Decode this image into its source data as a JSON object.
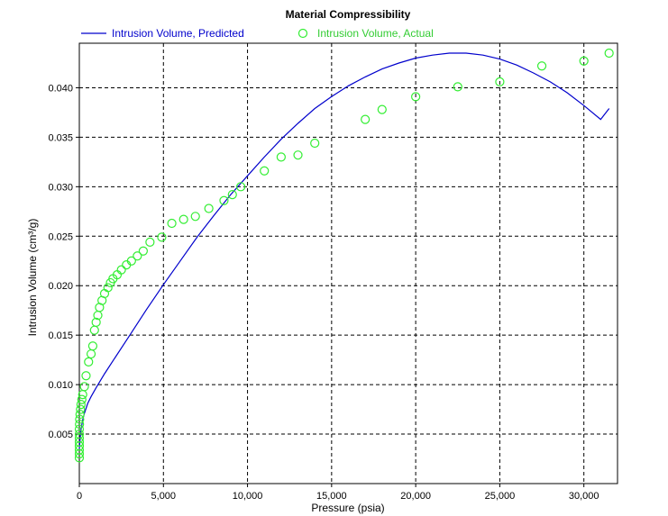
{
  "chart_data": {
    "type": "scatter",
    "title": "Material Compressibility",
    "xlabel": "Pressure (psia)",
    "ylabel": "Intrusion Volume (cm³/g)",
    "xlim": [
      0,
      32000
    ],
    "ylim": [
      0,
      0.0445
    ],
    "x_ticks": [
      0,
      5000,
      10000,
      15000,
      20000,
      25000,
      30000
    ],
    "x_tick_labels": [
      "0",
      "5,000",
      "10,000",
      "15,000",
      "20,000",
      "25,000",
      "30,000"
    ],
    "y_ticks": [
      0.005,
      0.01,
      0.015,
      0.02,
      0.025,
      0.03,
      0.035,
      0.04
    ],
    "y_tick_labels": [
      "0.005",
      "0.010",
      "0.015",
      "0.020",
      "0.025",
      "0.030",
      "0.035",
      "0.040"
    ],
    "grid": true,
    "legend_position": "top",
    "series": [
      {
        "name": "Intrusion Volume, Predicted",
        "kind": "line",
        "color": "#0000cc",
        "x": [
          0,
          50,
          100,
          200,
          300,
          500,
          700,
          1000,
          1500,
          2000,
          3000,
          4000,
          5000,
          6000,
          7000,
          8000,
          9000,
          10000,
          11000,
          12000,
          13000,
          14000,
          15000,
          16000,
          17000,
          18000,
          19000,
          20000,
          21000,
          22000,
          23000,
          24000,
          25000,
          26000,
          27000,
          28000,
          29000,
          30000,
          31000,
          31500
        ],
        "y": [
          0.0035,
          0.0046,
          0.0055,
          0.0064,
          0.0071,
          0.0081,
          0.0088,
          0.0097,
          0.0111,
          0.0124,
          0.015,
          0.0176,
          0.0201,
          0.0225,
          0.0249,
          0.0271,
          0.0292,
          0.0311,
          0.033,
          0.0348,
          0.0364,
          0.0379,
          0.0391,
          0.0402,
          0.0411,
          0.0419,
          0.0425,
          0.043,
          0.0433,
          0.0435,
          0.0435,
          0.0433,
          0.0429,
          0.0423,
          0.0415,
          0.0406,
          0.0395,
          0.0382,
          0.0368,
          0.0379
        ]
      },
      {
        "name": "Intrusion Volume, Actual",
        "kind": "scatter",
        "color": "#33ee33",
        "x": [
          0,
          0,
          0,
          0,
          0,
          0,
          0,
          0,
          10,
          20,
          40,
          70,
          100,
          150,
          200,
          300,
          400,
          550,
          700,
          800,
          900,
          1000,
          1100,
          1200,
          1350,
          1500,
          1700,
          1850,
          2000,
          2250,
          2500,
          2800,
          3100,
          3450,
          3800,
          4200,
          4900,
          5500,
          6200,
          6900,
          7700,
          8600,
          9100,
          9600,
          11000,
          12000,
          13000,
          14000,
          17000,
          18000,
          20000,
          22500,
          25000,
          27500,
          30000,
          31500
        ],
        "y": [
          0.0026,
          0.003,
          0.0034,
          0.0038,
          0.0042,
          0.0046,
          0.005,
          0.0055,
          0.006,
          0.0065,
          0.007,
          0.0075,
          0.008,
          0.0085,
          0.009,
          0.0098,
          0.0109,
          0.0123,
          0.0131,
          0.0139,
          0.0155,
          0.0163,
          0.017,
          0.0178,
          0.0185,
          0.0192,
          0.0198,
          0.0203,
          0.0207,
          0.0211,
          0.0216,
          0.0221,
          0.0225,
          0.023,
          0.0235,
          0.0244,
          0.0249,
          0.0263,
          0.0267,
          0.027,
          0.0278,
          0.0286,
          0.0292,
          0.03,
          0.0316,
          0.033,
          0.0332,
          0.0344,
          0.0368,
          0.0378,
          0.0391,
          0.0401,
          0.0406,
          0.0422,
          0.0427,
          0.0435
        ]
      }
    ]
  }
}
